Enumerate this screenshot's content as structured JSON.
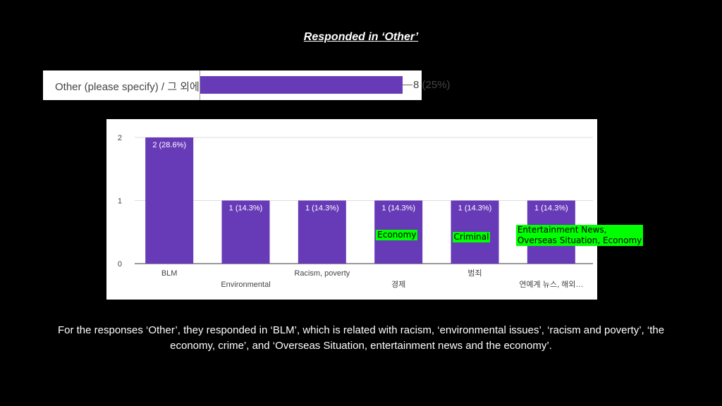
{
  "slide": {
    "title": "Responded in ‘Other’",
    "caption": "For the responses ‘Other’, they responded in ‘BLM’, which is related with racism, ‘environmental issues’, ‘racism and poverty’, ‘the economy, crime’, and ‘Overseas Situation, entertainment news and the economy’."
  },
  "summary_bar": {
    "label": "Other (please specify) / 그 외에",
    "value_label": "8 (25%)",
    "value": 8,
    "percent": 25,
    "fill_fraction": 0.7,
    "color": "#673ab7"
  },
  "chart_data": {
    "type": "bar",
    "categories": [
      "BLM",
      "Environmental",
      "Racism, poverty",
      "경제",
      "범죄",
      "연예계 뉴스, 해외…"
    ],
    "values": [
      2,
      1,
      1,
      1,
      1,
      1
    ],
    "data_labels": [
      "2 (28.6%)",
      "1 (14.3%)",
      "1 (14.3%)",
      "1 (14.3%)",
      "1 (14.3%)",
      "1 (14.3%)"
    ],
    "yticks": [
      0,
      1,
      2
    ],
    "ylim": [
      0,
      2
    ],
    "grid": true,
    "bar_color": "#673ab7"
  },
  "annotations": [
    {
      "bar_index": 3,
      "text": "Economy"
    },
    {
      "bar_index": 4,
      "text": "Criminal"
    },
    {
      "bar_index": 5,
      "text": "Entertainment News,\nOverseas Situation, Economy"
    }
  ]
}
